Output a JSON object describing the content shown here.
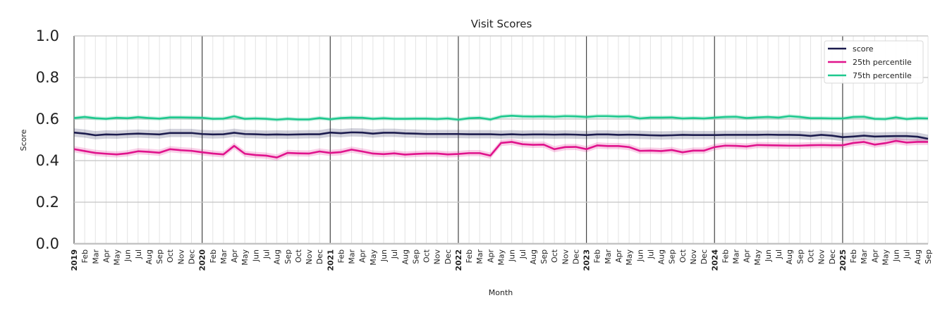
{
  "chart_data": {
    "type": "line",
    "title": "Visit Scores",
    "xlabel": "Month",
    "ylabel": "Score",
    "ylim": [
      0,
      1
    ],
    "yticks": [
      "0.0",
      "0.2",
      "0.4",
      "0.6",
      "0.8",
      "1.0"
    ],
    "grid": true,
    "legend_position": "top-right",
    "x_start": "2019-01",
    "x_end": "2025-09",
    "month_labels": [
      "Jan",
      "Feb",
      "Mar",
      "Apr",
      "May",
      "Jun",
      "Jul",
      "Aug",
      "Sep",
      "Oct",
      "Nov",
      "Dec"
    ],
    "series": [
      {
        "name": "score",
        "color": "#1c1c4e",
        "band_halfwidth": 0.02,
        "values": [
          0.535,
          0.53,
          0.522,
          0.526,
          0.525,
          0.528,
          0.53,
          0.528,
          0.526,
          0.533,
          0.533,
          0.533,
          0.528,
          0.526,
          0.527,
          0.534,
          0.528,
          0.527,
          0.525,
          0.526,
          0.525,
          0.526,
          0.527,
          0.527,
          0.535,
          0.532,
          0.536,
          0.535,
          0.53,
          0.534,
          0.534,
          0.531,
          0.53,
          0.528,
          0.528,
          0.528,
          0.528,
          0.527,
          0.527,
          0.527,
          0.525,
          0.527,
          0.525,
          0.526,
          0.526,
          0.525,
          0.526,
          0.525,
          0.523,
          0.526,
          0.526,
          0.524,
          0.525,
          0.524,
          0.522,
          0.521,
          0.522,
          0.524,
          0.523,
          0.523,
          0.523,
          0.524,
          0.524,
          0.524,
          0.524,
          0.525,
          0.524,
          0.524,
          0.523,
          0.519,
          0.524,
          0.52,
          0.513,
          0.516,
          0.52,
          0.516,
          0.517,
          0.518,
          0.518,
          0.515,
          0.505
        ]
      },
      {
        "name": "25th percentile",
        "color": "#e0138c",
        "band_halfwidth": 0.015,
        "values": [
          0.455,
          0.446,
          0.437,
          0.433,
          0.43,
          0.435,
          0.445,
          0.442,
          0.438,
          0.455,
          0.45,
          0.447,
          0.44,
          0.434,
          0.43,
          0.471,
          0.433,
          0.427,
          0.424,
          0.415,
          0.437,
          0.435,
          0.434,
          0.444,
          0.437,
          0.441,
          0.453,
          0.444,
          0.434,
          0.431,
          0.435,
          0.429,
          0.432,
          0.434,
          0.434,
          0.43,
          0.432,
          0.436,
          0.436,
          0.424,
          0.485,
          0.49,
          0.479,
          0.476,
          0.477,
          0.455,
          0.465,
          0.466,
          0.455,
          0.473,
          0.47,
          0.47,
          0.465,
          0.447,
          0.448,
          0.446,
          0.451,
          0.44,
          0.448,
          0.448,
          0.465,
          0.472,
          0.471,
          0.468,
          0.475,
          0.474,
          0.473,
          0.472,
          0.472,
          0.474,
          0.475,
          0.474,
          0.474,
          0.485,
          0.49,
          0.477,
          0.484,
          0.495,
          0.487,
          0.49,
          0.49
        ]
      },
      {
        "name": "75th percentile",
        "color": "#1ec88e",
        "band_halfwidth": 0.01,
        "values": [
          0.605,
          0.61,
          0.604,
          0.601,
          0.606,
          0.604,
          0.609,
          0.605,
          0.602,
          0.608,
          0.608,
          0.607,
          0.606,
          0.601,
          0.602,
          0.613,
          0.601,
          0.603,
          0.601,
          0.597,
          0.601,
          0.598,
          0.598,
          0.605,
          0.599,
          0.605,
          0.607,
          0.606,
          0.601,
          0.604,
          0.601,
          0.601,
          0.602,
          0.602,
          0.6,
          0.603,
          0.597,
          0.604,
          0.606,
          0.598,
          0.612,
          0.616,
          0.613,
          0.612,
          0.613,
          0.611,
          0.614,
          0.613,
          0.61,
          0.614,
          0.614,
          0.612,
          0.613,
          0.603,
          0.607,
          0.607,
          0.608,
          0.603,
          0.605,
          0.603,
          0.607,
          0.61,
          0.611,
          0.605,
          0.608,
          0.61,
          0.607,
          0.614,
          0.61,
          0.604,
          0.604,
          0.603,
          0.603,
          0.61,
          0.611,
          0.601,
          0.6,
          0.608,
          0.6,
          0.604,
          0.603
        ]
      }
    ]
  }
}
